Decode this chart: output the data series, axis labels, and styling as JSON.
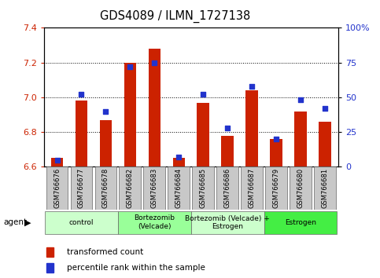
{
  "title": "GDS4089 / ILMN_1727138",
  "samples": [
    "GSM766676",
    "GSM766677",
    "GSM766678",
    "GSM766682",
    "GSM766683",
    "GSM766684",
    "GSM766685",
    "GSM766686",
    "GSM766687",
    "GSM766679",
    "GSM766680",
    "GSM766681"
  ],
  "transformed_count": [
    6.65,
    6.98,
    6.87,
    7.2,
    7.28,
    6.65,
    6.97,
    6.78,
    7.04,
    6.76,
    6.92,
    6.86
  ],
  "percentile_rank": [
    5,
    52,
    40,
    72,
    75,
    7,
    52,
    28,
    58,
    20,
    48,
    42
  ],
  "ylim_left": [
    6.6,
    7.4
  ],
  "ylim_right": [
    0,
    100
  ],
  "yticks_left": [
    6.6,
    6.8,
    7.0,
    7.2,
    7.4
  ],
  "yticks_right": [
    0,
    25,
    50,
    75,
    100
  ],
  "ytick_labels_right": [
    "0",
    "25",
    "50",
    "75",
    "100%"
  ],
  "bar_color": "#cc2200",
  "dot_color": "#2233cc",
  "bar_bottom": 6.6,
  "groups": [
    {
      "label": "control",
      "start": 0,
      "end": 3,
      "color": "#ccffcc"
    },
    {
      "label": "Bortezomib\n(Velcade)",
      "start": 3,
      "end": 6,
      "color": "#99ff99"
    },
    {
      "label": "Bortezomib (Velcade) +\nEstrogen",
      "start": 6,
      "end": 9,
      "color": "#ccffcc"
    },
    {
      "label": "Estrogen",
      "start": 9,
      "end": 12,
      "color": "#44ee44"
    }
  ],
  "legend_items": [
    {
      "label": "transformed count",
      "color": "#cc2200"
    },
    {
      "label": "percentile rank within the sample",
      "color": "#2233cc"
    }
  ],
  "tick_label_color_left": "#cc2200",
  "tick_label_color_right": "#2233cc",
  "bar_width": 0.5,
  "name_box_color": "#c8c8c8"
}
